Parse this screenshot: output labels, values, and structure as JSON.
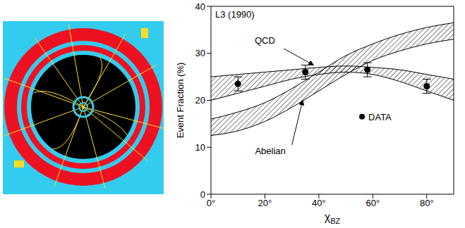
{
  "chart_data": {
    "type": "line",
    "title": "L3 (1990)",
    "x_label": "χBZ",
    "y_label": "Event Fraction (%)",
    "xlim": [
      0,
      90
    ],
    "ylim": [
      0,
      40
    ],
    "xticks": [
      {
        "value": 0,
        "label": "0°"
      },
      {
        "value": 20,
        "label": "20°"
      },
      {
        "value": 40,
        "label": "40°"
      },
      {
        "value": 60,
        "label": "60°"
      },
      {
        "value": 80,
        "label": "80°"
      }
    ],
    "yticks": [
      0,
      10,
      20,
      30,
      40
    ],
    "legend": "lower right",
    "series": [
      {
        "name": "QCD",
        "type": "band",
        "color": "#000000",
        "x": [
          0,
          10,
          20,
          30,
          40,
          50,
          60,
          70,
          80,
          90
        ],
        "lower": [
          20,
          21.5,
          23,
          24.5,
          25.5,
          26,
          25.5,
          24,
          22,
          20
        ],
        "upper": [
          25,
          25.5,
          26,
          26.5,
          27,
          27.3,
          27,
          26.5,
          25.5,
          24.5
        ]
      },
      {
        "name": "Abelian",
        "type": "band",
        "color": "#000000",
        "x": [
          0,
          10,
          20,
          30,
          40,
          50,
          60,
          70,
          80,
          90
        ],
        "lower": [
          12.5,
          13.5,
          15.5,
          18.5,
          22,
          25.5,
          28.5,
          30.5,
          32,
          33
        ],
        "upper": [
          16,
          17.5,
          19.5,
          22.5,
          26,
          29.5,
          32,
          34,
          35.5,
          36.5
        ]
      },
      {
        "name": "DATA",
        "type": "scatter",
        "marker": "circle",
        "color": "#000000",
        "x": [
          10,
          35,
          58,
          80
        ],
        "values": [
          23.5,
          26,
          26.5,
          23
        ],
        "errors": [
          1.5,
          1.5,
          1.5,
          1.5
        ]
      }
    ]
  }
}
